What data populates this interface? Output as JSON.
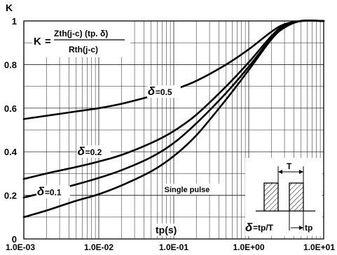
{
  "chart_data": {
    "type": "line",
    "title": "",
    "xlabel": "tp(s)",
    "ylabel": "K",
    "x_scale": "log",
    "xlim": [
      0.001,
      10
    ],
    "ylim": [
      0,
      1
    ],
    "x_ticks": [
      "1.0E-03",
      "1.0E-02",
      "1.0E-01",
      "1.0E+00",
      "1.0E+01"
    ],
    "y_ticks": [
      "0",
      "0.2",
      "0.4",
      "0.6",
      "0.8",
      "1"
    ],
    "grid": true,
    "formula": {
      "lhs": "K",
      "equals": "=",
      "numerator": "Zth(j-c) (tp. δ)",
      "denominator": "Rth(j-c)"
    },
    "series": [
      {
        "name": "δ=0.5",
        "label_symbol": "δ",
        "label_value": "=0.5",
        "x": [
          0.001,
          0.002,
          0.005,
          0.01,
          0.02,
          0.05,
          0.1,
          0.2,
          0.5,
          1,
          2,
          3,
          5,
          10
        ],
        "y": [
          0.55,
          0.565,
          0.585,
          0.6,
          0.62,
          0.655,
          0.685,
          0.725,
          0.8,
          0.87,
          0.95,
          0.985,
          1.0,
          1.0
        ]
      },
      {
        "name": "δ=0.2",
        "label_symbol": "δ",
        "label_value": "=0.2",
        "x": [
          0.001,
          0.002,
          0.005,
          0.01,
          0.02,
          0.05,
          0.1,
          0.2,
          0.5,
          1,
          2,
          3,
          5,
          10
        ],
        "y": [
          0.275,
          0.3,
          0.33,
          0.355,
          0.385,
          0.44,
          0.495,
          0.57,
          0.7,
          0.81,
          0.93,
          0.98,
          1.0,
          1.0
        ]
      },
      {
        "name": "δ=0.1",
        "label_symbol": "δ",
        "label_value": "=0.1",
        "x": [
          0.001,
          0.002,
          0.005,
          0.01,
          0.02,
          0.05,
          0.1,
          0.2,
          0.5,
          1,
          2,
          3,
          5,
          10
        ],
        "y": [
          0.19,
          0.215,
          0.25,
          0.28,
          0.315,
          0.375,
          0.44,
          0.53,
          0.67,
          0.79,
          0.92,
          0.975,
          1.0,
          1.0
        ]
      },
      {
        "name": "Single pulse",
        "label_symbol": "",
        "label_value": "Single pulse",
        "x": [
          0.001,
          0.002,
          0.005,
          0.01,
          0.02,
          0.05,
          0.1,
          0.2,
          0.5,
          1,
          2,
          3,
          5,
          10
        ],
        "y": [
          0.1,
          0.13,
          0.175,
          0.205,
          0.245,
          0.31,
          0.38,
          0.475,
          0.64,
          0.775,
          0.915,
          0.97,
          1.0,
          1.0
        ]
      }
    ],
    "inset": {
      "period_label": "T",
      "pulse_label": "tp",
      "duty_symbol": "δ",
      "duty_formula": "=tp/T"
    }
  }
}
